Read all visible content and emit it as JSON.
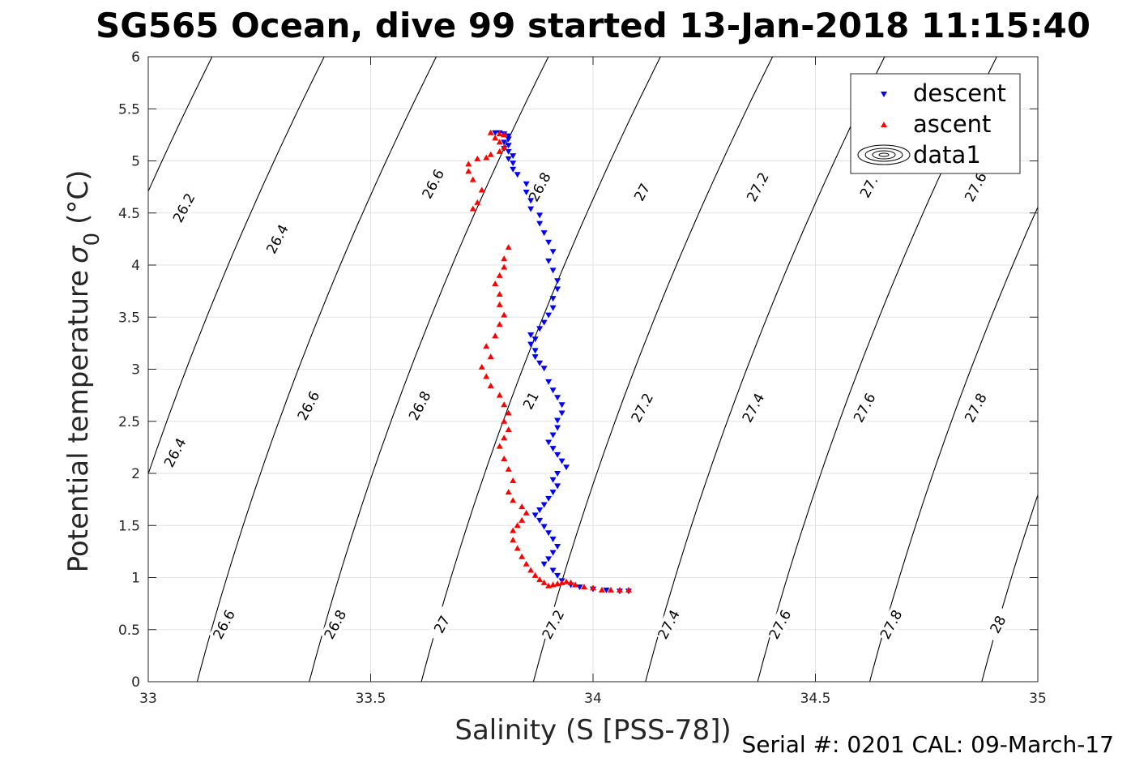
{
  "title": "SG565 Ocean, dive 99 started 13-Jan-2018 11:15:40",
  "footer": "Serial #: 0201  CAL: 09-March-17",
  "chart_data": {
    "type": "scatter",
    "xlabel": "Salinity (S [PSS-78])",
    "ylabel": "Potential temperature",
    "ylabel_symbol": "σ",
    "ylabel_subscript": "0",
    "ylabel_unit": "(°C)",
    "xlim": [
      33,
      35
    ],
    "ylim": [
      0,
      6
    ],
    "xticks": [
      33,
      33.5,
      34,
      34.5,
      35
    ],
    "xtick_labels": [
      "33",
      "33.5",
      "34",
      "34.5",
      "35"
    ],
    "yticks": [
      0,
      0.5,
      1,
      1.5,
      2,
      2.5,
      3,
      3.5,
      4,
      4.5,
      5,
      5.5,
      6
    ],
    "ytick_labels": [
      "0",
      "0.5",
      "1",
      "1.5",
      "2",
      "2.5",
      "3",
      "3.5",
      "4",
      "4.5",
      "5",
      "5.5",
      "6"
    ],
    "grid": true,
    "legend_position": "top-right",
    "legend": [
      {
        "label": "descent",
        "marker": "triangle-down",
        "color": "#0000ff"
      },
      {
        "label": "ascent",
        "marker": "triangle-up",
        "color": "#ff0000"
      },
      {
        "label": "data1",
        "marker": "contour",
        "color": "#000000"
      }
    ],
    "series": [
      {
        "name": "descent",
        "color": "#0000ff",
        "marker": "triangle-down",
        "points": [
          [
            33.78,
            5.27
          ],
          [
            33.79,
            5.27
          ],
          [
            33.8,
            5.26
          ],
          [
            33.81,
            5.24
          ],
          [
            33.81,
            5.21
          ],
          [
            33.8,
            5.18
          ],
          [
            33.81,
            5.15
          ],
          [
            33.8,
            5.12
          ],
          [
            33.81,
            5.09
          ],
          [
            33.82,
            5.05
          ],
          [
            33.81,
            5.02
          ],
          [
            33.82,
            4.98
          ],
          [
            33.82,
            4.92
          ],
          [
            33.83,
            4.87
          ],
          [
            33.85,
            4.78
          ],
          [
            33.85,
            4.7
          ],
          [
            33.86,
            4.62
          ],
          [
            33.86,
            4.54
          ],
          [
            33.88,
            4.48
          ],
          [
            33.88,
            4.4
          ],
          [
            33.89,
            4.31
          ],
          [
            33.9,
            4.22
          ],
          [
            33.91,
            4.13
          ],
          [
            33.9,
            4.04
          ],
          [
            33.91,
            3.95
          ],
          [
            33.92,
            3.85
          ],
          [
            33.92,
            3.77
          ],
          [
            33.91,
            3.68
          ],
          [
            33.91,
            3.59
          ],
          [
            33.9,
            3.52
          ],
          [
            33.89,
            3.45
          ],
          [
            33.88,
            3.39
          ],
          [
            33.86,
            3.33
          ],
          [
            33.87,
            3.29
          ],
          [
            33.86,
            3.24
          ],
          [
            33.87,
            3.18
          ],
          [
            33.87,
            3.12
          ],
          [
            33.88,
            3.06
          ],
          [
            33.89,
            3.01
          ],
          [
            33.9,
            2.88
          ],
          [
            33.91,
            2.8
          ],
          [
            33.92,
            2.73
          ],
          [
            33.93,
            2.66
          ],
          [
            33.93,
            2.58
          ],
          [
            33.92,
            2.51
          ],
          [
            33.92,
            2.44
          ],
          [
            33.91,
            2.37
          ],
          [
            33.9,
            2.3
          ],
          [
            33.91,
            2.24
          ],
          [
            33.92,
            2.18
          ],
          [
            33.93,
            2.12
          ],
          [
            33.94,
            2.06
          ],
          [
            33.92,
            2.0
          ],
          [
            33.91,
            1.94
          ],
          [
            33.92,
            1.88
          ],
          [
            33.91,
            1.82
          ],
          [
            33.9,
            1.76
          ],
          [
            33.89,
            1.7
          ],
          [
            33.88,
            1.65
          ],
          [
            33.87,
            1.6
          ],
          [
            33.88,
            1.55
          ],
          [
            33.89,
            1.49
          ],
          [
            33.9,
            1.43
          ],
          [
            33.91,
            1.37
          ],
          [
            33.92,
            1.3
          ],
          [
            33.91,
            1.24
          ],
          [
            33.9,
            1.18
          ],
          [
            33.89,
            1.13
          ],
          [
            33.91,
            1.07
          ],
          [
            33.92,
            1.02
          ],
          [
            33.93,
            0.97
          ],
          [
            33.95,
            0.93
          ],
          [
            33.97,
            0.91
          ],
          [
            34.0,
            0.89
          ],
          [
            34.03,
            0.88
          ],
          [
            34.06,
            0.87
          ],
          [
            34.08,
            0.87
          ]
        ]
      },
      {
        "name": "ascent",
        "color": "#ff0000",
        "marker": "triangle-up",
        "points": [
          [
            34.08,
            0.88
          ],
          [
            34.06,
            0.88
          ],
          [
            34.04,
            0.88
          ],
          [
            34.02,
            0.88
          ],
          [
            34.0,
            0.9
          ],
          [
            33.98,
            0.91
          ],
          [
            33.96,
            0.93
          ],
          [
            33.95,
            0.95
          ],
          [
            33.94,
            0.96
          ],
          [
            33.93,
            0.95
          ],
          [
            33.92,
            0.94
          ],
          [
            33.91,
            0.93
          ],
          [
            33.9,
            0.92
          ],
          [
            33.89,
            0.95
          ],
          [
            33.88,
            0.98
          ],
          [
            33.87,
            1.02
          ],
          [
            33.86,
            1.07
          ],
          [
            33.85,
            1.13
          ],
          [
            33.84,
            1.2
          ],
          [
            33.83,
            1.28
          ],
          [
            33.82,
            1.36
          ],
          [
            33.82,
            1.45
          ],
          [
            33.83,
            1.5
          ],
          [
            33.84,
            1.55
          ],
          [
            33.85,
            1.62
          ],
          [
            33.84,
            1.68
          ],
          [
            33.82,
            1.74
          ],
          [
            33.81,
            1.82
          ],
          [
            33.82,
            1.93
          ],
          [
            33.81,
            2.04
          ],
          [
            33.8,
            2.14
          ],
          [
            33.79,
            2.26
          ],
          [
            33.8,
            2.34
          ],
          [
            33.81,
            2.42
          ],
          [
            33.8,
            2.5
          ],
          [
            33.81,
            2.58
          ],
          [
            33.8,
            2.66
          ],
          [
            33.79,
            2.75
          ],
          [
            33.77,
            2.84
          ],
          [
            33.76,
            2.93
          ],
          [
            33.75,
            3.02
          ],
          [
            33.77,
            3.12
          ],
          [
            33.76,
            3.22
          ],
          [
            33.78,
            3.32
          ],
          [
            33.79,
            3.43
          ],
          [
            33.8,
            3.52
          ],
          [
            33.79,
            3.62
          ],
          [
            33.79,
            3.72
          ],
          [
            33.78,
            3.82
          ],
          [
            33.79,
            3.9
          ],
          [
            33.8,
            3.98
          ],
          [
            33.8,
            4.06
          ],
          [
            33.81,
            4.17
          ],
          [
            33.73,
            4.54
          ],
          [
            33.74,
            4.6
          ],
          [
            33.75,
            4.72
          ],
          [
            33.73,
            4.82
          ],
          [
            33.72,
            4.9
          ],
          [
            33.72,
            4.97
          ],
          [
            33.74,
            5.02
          ],
          [
            33.76,
            5.03
          ],
          [
            33.77,
            5.06
          ],
          [
            33.79,
            5.09
          ],
          [
            33.8,
            5.13
          ],
          [
            33.79,
            5.18
          ],
          [
            33.78,
            5.22
          ],
          [
            33.77,
            5.27
          ],
          [
            33.79,
            5.26
          ],
          [
            33.8,
            5.25
          ]
        ]
      }
    ],
    "contour_levels": [
      "26.2",
      "26.4",
      "26.6",
      "26.8",
      "27",
      "27.2",
      "27.4",
      "27.6",
      "27.8",
      "28"
    ],
    "contour_labels": [
      {
        "level": "26.2",
        "s": 33.08,
        "t": 4.55
      },
      {
        "level": "26.4",
        "s": 33.29,
        "t": 4.25
      },
      {
        "level": "26.6",
        "s": 33.64,
        "t": 4.78
      },
      {
        "level": "26.8",
        "s": 33.88,
        "t": 4.75
      },
      {
        "level": "27",
        "s": 34.11,
        "t": 4.7
      },
      {
        "level": "27.2",
        "s": 34.37,
        "t": 4.75
      },
      {
        "level": "27.",
        "s": 34.62,
        "t": 4.75
      },
      {
        "level": "27.6",
        "s": 34.86,
        "t": 4.75
      },
      {
        "level": "26.4",
        "s": 33.06,
        "t": 2.2
      },
      {
        "level": "26.6",
        "s": 33.36,
        "t": 2.65
      },
      {
        "level": "26.8",
        "s": 33.61,
        "t": 2.65
      },
      {
        "level": "21",
        "s": 33.86,
        "t": 2.7
      },
      {
        "level": "27.2",
        "s": 34.11,
        "t": 2.63
      },
      {
        "level": "27.4",
        "s": 34.36,
        "t": 2.63
      },
      {
        "level": "27.6",
        "s": 34.61,
        "t": 2.63
      },
      {
        "level": "27.8",
        "s": 34.86,
        "t": 2.63
      },
      {
        "level": "26.6",
        "s": 33.17,
        "t": 0.55
      },
      {
        "level": "26.8",
        "s": 33.42,
        "t": 0.55
      },
      {
        "level": "27",
        "s": 33.66,
        "t": 0.55
      },
      {
        "level": "27.2",
        "s": 33.91,
        "t": 0.55
      },
      {
        "level": "27.4",
        "s": 34.17,
        "t": 0.55
      },
      {
        "level": "27.6",
        "s": 34.42,
        "t": 0.55
      },
      {
        "level": "27.8",
        "s": 34.67,
        "t": 0.55
      },
      {
        "level": "28",
        "s": 34.91,
        "t": 0.55
      }
    ]
  }
}
